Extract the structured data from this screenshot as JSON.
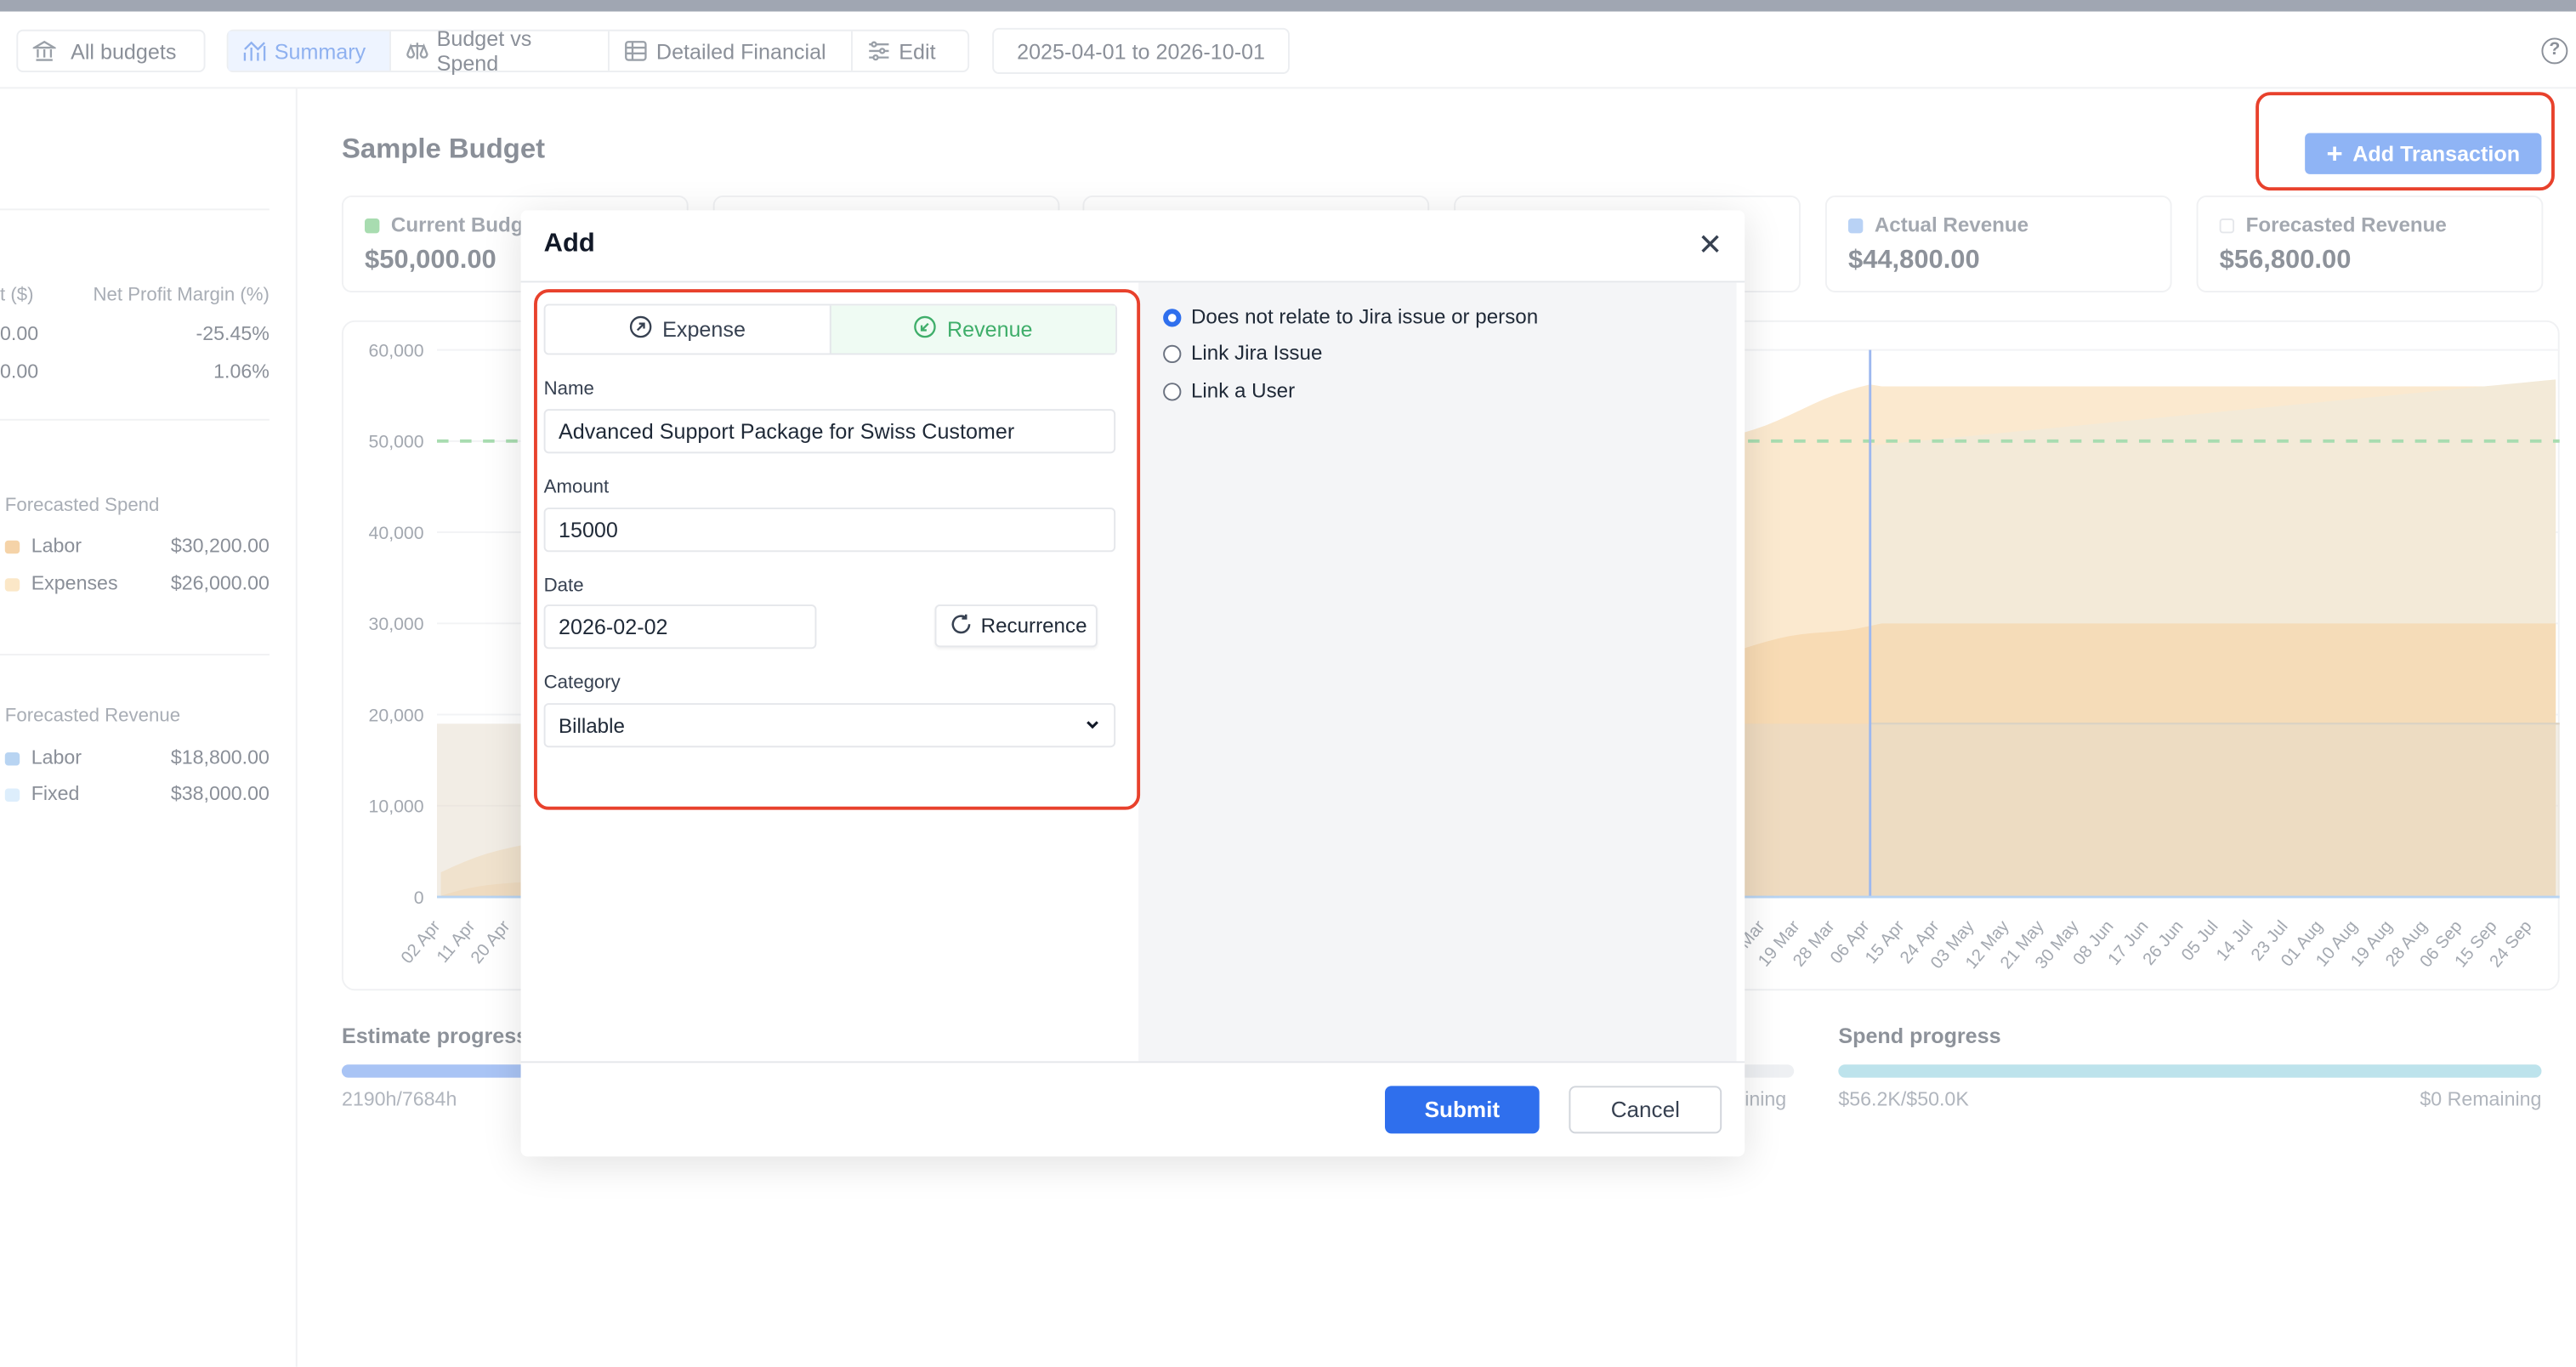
{
  "nav": {
    "all_budgets": "All budgets",
    "tabs": [
      {
        "label": "Summary",
        "icon": "chart-up-icon",
        "active": true
      },
      {
        "label": "Budget vs Spend",
        "icon": "scale-icon"
      },
      {
        "label": "Detailed Financial",
        "icon": "table-icon"
      },
      {
        "label": "Edit",
        "icon": "sliders-icon"
      }
    ],
    "date_range": "2025-04-01 to 2026-10-01",
    "help_icon": "question-circle-icon"
  },
  "sidebar": {
    "profit_header": "t ($)",
    "margin_header": "Net Profit Margin (%)",
    "profit_rows": [
      {
        "profit": "0.00",
        "margin": "-25.45%"
      },
      {
        "profit": "0.00",
        "margin": "1.06%"
      }
    ],
    "forecasted_spend": {
      "title": "Forecasted Spend",
      "items": [
        {
          "label": "Labor",
          "value": "$30,200.00",
          "color": "#f5d3a8"
        },
        {
          "label": "Expenses",
          "value": "$26,000.00",
          "color": "#fbe7c7"
        }
      ]
    },
    "forecasted_revenue": {
      "title": "Forecasted Revenue",
      "items": [
        {
          "label": "Labor",
          "value": "$18,800.00",
          "color": "#b8d4f2"
        },
        {
          "label": "Fixed",
          "value": "$38,000.00",
          "color": "#ddeefc"
        }
      ]
    }
  },
  "main": {
    "title": "Sample Budget",
    "add_transaction": "Add Transaction",
    "cards": [
      {
        "title": "Current Budg",
        "value": "$50,000.00",
        "color": "#a8dcb0"
      },
      {
        "title": "",
        "value": ""
      },
      {
        "title": "",
        "value": ""
      },
      {
        "title": "",
        "value": ""
      },
      {
        "title": "Actual Revenue",
        "value": "$44,800.00",
        "color": "#b9d2f5"
      },
      {
        "title": "Forecasted Revenue",
        "value": "$56,800.00",
        "color": "#ffffff"
      }
    ],
    "estimate_progress": {
      "title": "Estimate progress",
      "text": "2190h/7684h",
      "percent": 28.5
    },
    "middle_progress": {
      "remaining": "ining"
    },
    "spend_progress": {
      "title": "Spend progress",
      "text": "$56.2K/$50.0K",
      "remaining": "$0 Remaining",
      "percent": 100
    }
  },
  "chart_data": {
    "type": "area",
    "yticks": [
      "60,000",
      "50,000",
      "40,000",
      "30,000",
      "20,000",
      "10,000",
      "0"
    ],
    "ylim": [
      0,
      60000
    ],
    "xticks_left": [
      "02 Apr",
      "11 Apr",
      "20 Apr",
      "29"
    ],
    "xticks_right": [
      "Mar",
      "19 Mar",
      "28 Mar",
      "06 Apr",
      "15 Apr",
      "24 Apr",
      "03 May",
      "12 May",
      "21 May",
      "30 May",
      "08 Jun",
      "17 Jun",
      "26 Jun",
      "05 Jul",
      "14 Jul",
      "23 Jul",
      "01 Aug",
      "10 Aug",
      "19 Aug",
      "28 Aug",
      "06 Sep",
      "15 Sep",
      "24 Sep"
    ],
    "budget_line": 50000,
    "today": "2026-04-06",
    "colors": {
      "budget": "#a8dcb0",
      "spend_total": "#fbe9cf",
      "spend_labor": "#f5cf9e",
      "revenue": "#f3ead8",
      "today": "#9db8ef"
    }
  },
  "modal": {
    "title": "Add",
    "type_tabs": [
      {
        "label": "Expense",
        "icon": "arrow-up-right-circle-icon"
      },
      {
        "label": "Revenue",
        "icon": "arrow-down-left-circle-icon",
        "active": true
      }
    ],
    "name_label": "Name",
    "name_value": "Advanced Support Package for Swiss Customer",
    "amount_label": "Amount",
    "amount_value": "15000",
    "date_label": "Date",
    "date_value": "2026-02-02",
    "recurrence": "Recurrence",
    "category_label": "Category",
    "category_value": "Billable",
    "link_options": [
      {
        "label": "Does not relate to Jira issue or person",
        "checked": true
      },
      {
        "label": "Link Jira Issue"
      },
      {
        "label": "Link a User"
      }
    ],
    "submit": "Submit",
    "cancel": "Cancel"
  },
  "highlight_color": "#e8412c"
}
